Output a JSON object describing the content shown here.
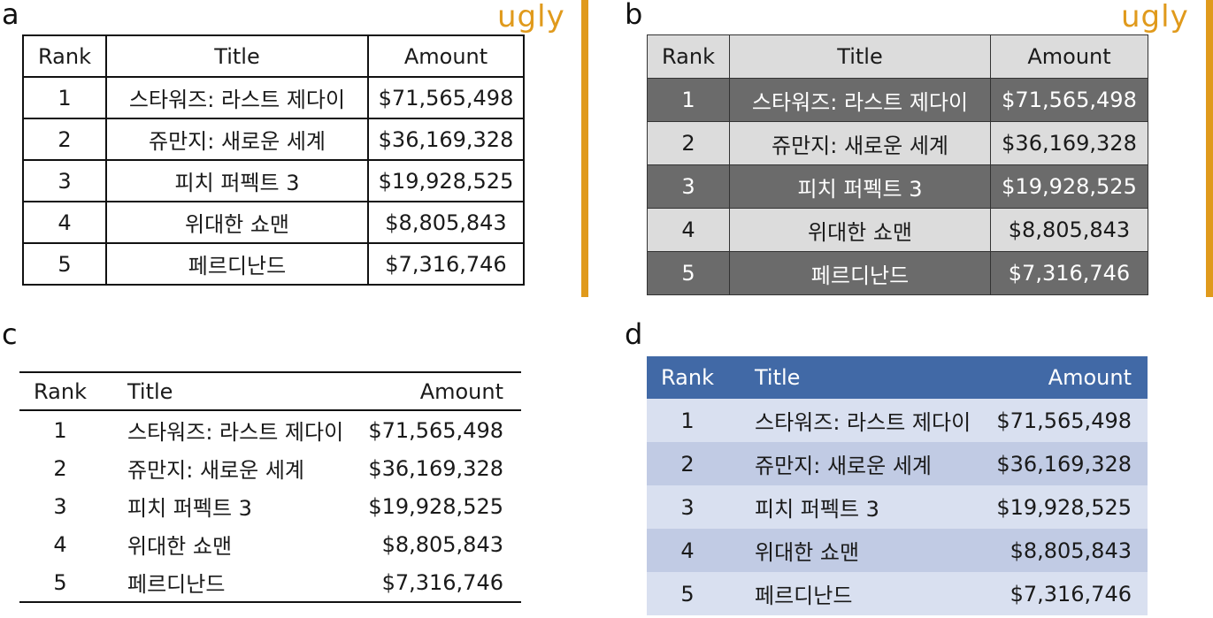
{
  "colors": {
    "ugly": "#e09a1c",
    "panel_b_dark_row": "#6b6b6b",
    "panel_b_light_row": "#dcdcdc",
    "panel_d_header": "#4169a6",
    "panel_d_row_light": "#d9e0f0",
    "panel_d_row_dark": "#c1cbe4"
  },
  "panels": {
    "a": {
      "label": "a",
      "tag": "ugly"
    },
    "b": {
      "label": "b",
      "tag": "ugly"
    },
    "c": {
      "label": "c"
    },
    "d": {
      "label": "d"
    }
  },
  "table": {
    "headers": [
      "Rank",
      "Title",
      "Amount"
    ],
    "rows": [
      {
        "rank": "1",
        "title": "스타워즈: 라스트 제다이",
        "amount": "$71,565,498"
      },
      {
        "rank": "2",
        "title": "쥬만지: 새로운 세계",
        "amount": "$36,169,328"
      },
      {
        "rank": "3",
        "title": "피치 퍼펙트 3",
        "amount": "$19,928,525"
      },
      {
        "rank": "4",
        "title": "위대한 쇼맨",
        "amount": "$8,805,843"
      },
      {
        "rank": "5",
        "title": "페르디난드",
        "amount": "$7,316,746"
      }
    ]
  }
}
